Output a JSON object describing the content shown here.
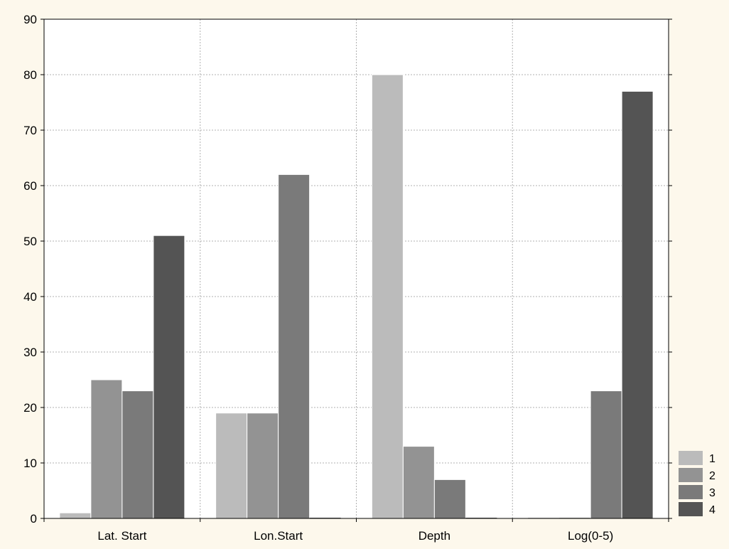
{
  "chart_data": {
    "type": "bar",
    "title": "",
    "xlabel": "",
    "ylabel": "",
    "categories": [
      "Lat. Start",
      "Lon.Start",
      "Depth",
      "Log(0-5)"
    ],
    "series": [
      {
        "name": "1",
        "color": "#bbbbbb",
        "values": [
          1,
          19,
          80,
          0
        ]
      },
      {
        "name": "2",
        "color": "#939393",
        "values": [
          25,
          19,
          13,
          0
        ]
      },
      {
        "name": "3",
        "color": "#7a7a7a",
        "values": [
          23,
          62,
          7,
          23
        ]
      },
      {
        "name": "4",
        "color": "#545454",
        "values": [
          51,
          0,
          0,
          77
        ]
      }
    ],
    "ylim": [
      0,
      90
    ],
    "yticks": [
      "0",
      "10",
      "20",
      "30",
      "40",
      "50",
      "60",
      "70",
      "80",
      "90"
    ],
    "grid": true,
    "legend_position": "bottom-right",
    "background_color": "#fdf8ec",
    "plot_background_color": "#ffffff"
  }
}
